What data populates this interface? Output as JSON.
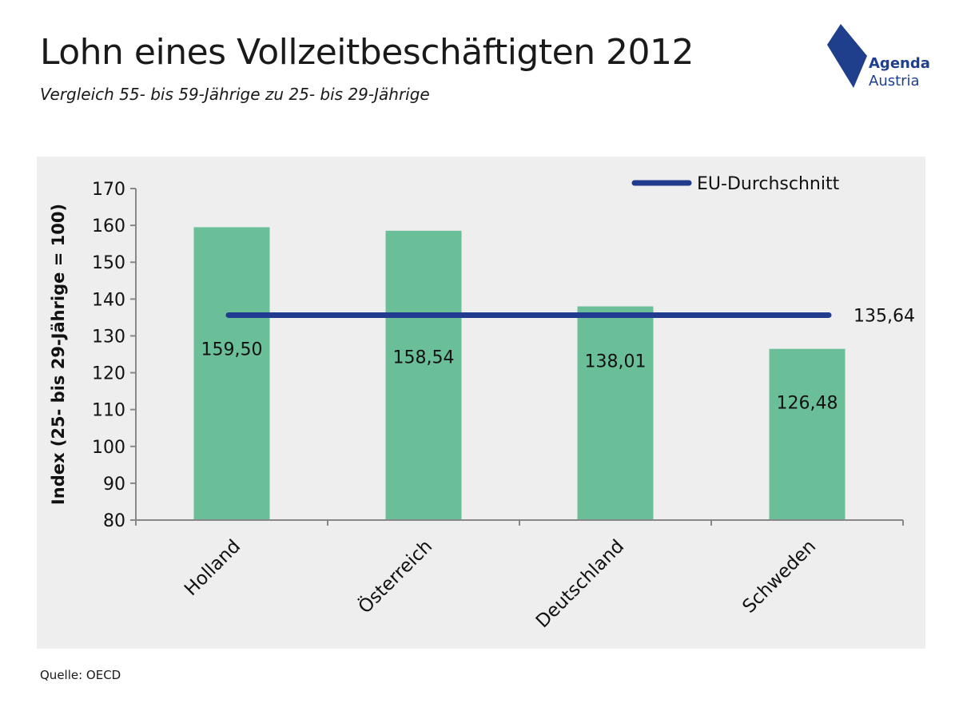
{
  "header": {
    "title": "Lohn eines Vollzeitbeschäftigten 2012",
    "subtitle": "Vergleich 55- bis 59-Jährige zu 25- bis 29-Jährige"
  },
  "logo": {
    "name": "Agenda",
    "sub": "Austria",
    "color": "#1f3f8c"
  },
  "footer": {
    "source": "Quelle: OECD"
  },
  "colors": {
    "bar": "#6abf99",
    "line": "#213b8f",
    "panel": "#eeeeee"
  },
  "chart_data": {
    "type": "bar",
    "title": "Lohn eines Vollzeitbeschäftigten 2012",
    "subtitle": "Vergleich 55- bis 59-Jährige zu 25- bis 29-Jährige",
    "xlabel": "",
    "ylabel": "Index (25- bis 29-Jährige = 100)",
    "ylim": [
      80,
      170
    ],
    "yticks": [
      80,
      90,
      100,
      110,
      120,
      130,
      140,
      150,
      160,
      170
    ],
    "categories": [
      "Holland",
      "Österreich",
      "Deutschland",
      "Schweden"
    ],
    "series": [
      {
        "values": [
          159.5,
          158.54,
          138.01,
          126.48
        ],
        "labels": [
          "159,50",
          "158,54",
          "138,01",
          "126,48"
        ]
      }
    ],
    "reference_line": {
      "name": "EU-Durchschnitt",
      "value": 135.64,
      "label": "135,64"
    },
    "legend": {
      "position": "top-right",
      "entries": [
        "EU-Durchschnitt"
      ]
    },
    "grid": false
  }
}
